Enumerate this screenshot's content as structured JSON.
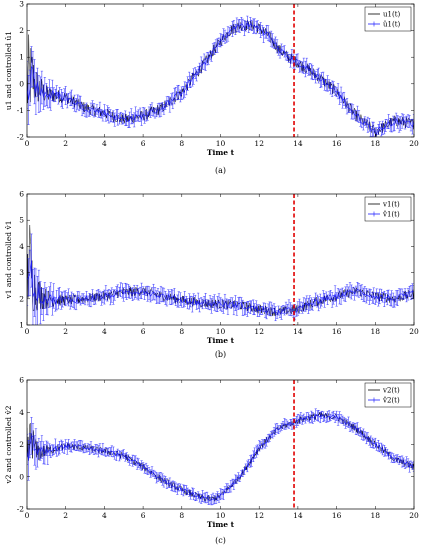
{
  "chart_data": [
    {
      "type": "line",
      "panel": "a",
      "caption": "(a)",
      "xlabel": "Time t",
      "ylabel": "u1 and controlled û1",
      "xlim": [
        0,
        20
      ],
      "ylim": [
        -2,
        3
      ],
      "xticks": [
        0,
        2,
        4,
        6,
        8,
        10,
        12,
        14,
        16,
        18,
        20
      ],
      "yticks": [
        -2,
        -1,
        0,
        1,
        2,
        3
      ],
      "vline_x": 13.8,
      "legend_position": "top-right",
      "series": [
        {
          "name": "u1(t)",
          "color": "#000000",
          "style": "line",
          "x": [
            0,
            0.2,
            0.5,
            1,
            2,
            3,
            4,
            5,
            6,
            7,
            8,
            9,
            10,
            10.5,
            11,
            11.5,
            12,
            12.5,
            13,
            13.5,
            14,
            15,
            16,
            17,
            18,
            19,
            20
          ],
          "y": [
            0,
            0.3,
            -0.1,
            -0.4,
            -0.5,
            -0.9,
            -1.1,
            -1.35,
            -1.2,
            -0.9,
            -0.3,
            0.6,
            1.6,
            2.0,
            2.2,
            2.2,
            2.1,
            1.8,
            1.3,
            1.0,
            0.8,
            0.3,
            -0.3,
            -1.2,
            -1.8,
            -1.4,
            -1.5
          ],
          "noise": 0.35,
          "noise_decay": 0.4
        },
        {
          "name": "û1(t)",
          "color": "#1a1aff",
          "style": "errorbar",
          "x": [
            0,
            0.2,
            0.5,
            1,
            2,
            3,
            4,
            5,
            6,
            7,
            8,
            9,
            10,
            10.5,
            11,
            11.5,
            12,
            12.5,
            13,
            13.5,
            14,
            15,
            16,
            17,
            18,
            19,
            20
          ],
          "y": [
            0,
            0.3,
            -0.1,
            -0.4,
            -0.5,
            -0.9,
            -1.1,
            -1.35,
            -1.2,
            -0.9,
            -0.3,
            0.6,
            1.6,
            2.0,
            2.2,
            2.2,
            2.1,
            1.8,
            1.3,
            1.0,
            0.8,
            0.3,
            -0.3,
            -1.2,
            -1.8,
            -1.4,
            -1.5
          ],
          "err": 0.25
        }
      ]
    },
    {
      "type": "line",
      "panel": "b",
      "caption": "(b)",
      "xlabel": "Time t",
      "ylabel": "v1 and controlled v̂1",
      "xlim": [
        0,
        20
      ],
      "ylim": [
        1,
        6
      ],
      "xticks": [
        0,
        2,
        4,
        6,
        8,
        10,
        12,
        14,
        16,
        18,
        20
      ],
      "yticks": [
        1,
        2,
        3,
        4,
        5,
        6
      ],
      "vline_x": 13.8,
      "legend_position": "top-right",
      "series": [
        {
          "name": "v1(t)",
          "color": "#000000",
          "style": "line",
          "x": [
            0,
            0.1,
            0.3,
            0.6,
            1,
            2,
            3,
            4,
            5,
            6,
            7,
            8,
            9,
            10,
            11,
            12,
            13,
            14,
            15,
            16,
            17,
            18,
            19,
            20
          ],
          "y": [
            2.0,
            4.0,
            2.5,
            2.2,
            2.0,
            1.95,
            2.0,
            2.1,
            2.25,
            2.3,
            2.1,
            1.95,
            1.85,
            1.8,
            1.75,
            1.6,
            1.5,
            1.6,
            1.9,
            2.1,
            2.3,
            2.1,
            2.0,
            2.2
          ],
          "noise": 0.3,
          "noise_decay": 0.5
        },
        {
          "name": "v̂1(t)",
          "color": "#1a1aff",
          "style": "errorbar",
          "x": [
            0,
            0.1,
            0.3,
            0.6,
            1,
            2,
            3,
            4,
            5,
            6,
            7,
            8,
            9,
            10,
            11,
            12,
            13,
            14,
            15,
            16,
            17,
            18,
            19,
            20
          ],
          "y": [
            2.0,
            4.0,
            2.5,
            2.2,
            2.0,
            1.95,
            2.0,
            2.1,
            2.25,
            2.3,
            2.1,
            1.95,
            1.85,
            1.8,
            1.75,
            1.6,
            1.5,
            1.6,
            1.9,
            2.1,
            2.3,
            2.1,
            2.0,
            2.2
          ],
          "err": 0.25
        }
      ]
    },
    {
      "type": "line",
      "panel": "c",
      "caption": "(c)",
      "xlabel": "Time t",
      "ylabel": "v2 and controlled v̂2",
      "xlim": [
        0,
        20
      ],
      "ylim": [
        -2,
        6
      ],
      "xticks": [
        0,
        2,
        4,
        6,
        8,
        10,
        12,
        14,
        16,
        18,
        20
      ],
      "yticks": [
        -2,
        0,
        2,
        4,
        6
      ],
      "vline_x": 13.8,
      "legend_position": "top-right",
      "series": [
        {
          "name": "v2(t)",
          "color": "#000000",
          "style": "line",
          "x": [
            0,
            0.2,
            0.5,
            1,
            2,
            3,
            4,
            5,
            6,
            7,
            8,
            9,
            9.5,
            10,
            11,
            12,
            13,
            14,
            15,
            16,
            17,
            18,
            19,
            20
          ],
          "y": [
            1.0,
            2.5,
            1.5,
            1.6,
            1.9,
            1.8,
            1.6,
            1.3,
            0.6,
            -0.2,
            -0.8,
            -1.3,
            -1.4,
            -1.2,
            0.0,
            1.8,
            3.0,
            3.5,
            3.8,
            3.7,
            3.0,
            2.0,
            1.1,
            0.6
          ],
          "noise": 0.35,
          "noise_decay": 0.4
        },
        {
          "name": "v̂2(t)",
          "color": "#1a1aff",
          "style": "errorbar",
          "x": [
            0,
            0.2,
            0.5,
            1,
            2,
            3,
            4,
            5,
            6,
            7,
            8,
            9,
            9.5,
            10,
            11,
            12,
            13,
            14,
            15,
            16,
            17,
            18,
            19,
            20
          ],
          "y": [
            1.0,
            2.5,
            1.5,
            1.6,
            1.9,
            1.8,
            1.6,
            1.3,
            0.6,
            -0.2,
            -0.8,
            -1.3,
            -1.4,
            -1.2,
            0.0,
            1.8,
            3.0,
            3.5,
            3.8,
            3.7,
            3.0,
            2.0,
            1.1,
            0.6
          ],
          "err": 0.3
        }
      ]
    }
  ]
}
